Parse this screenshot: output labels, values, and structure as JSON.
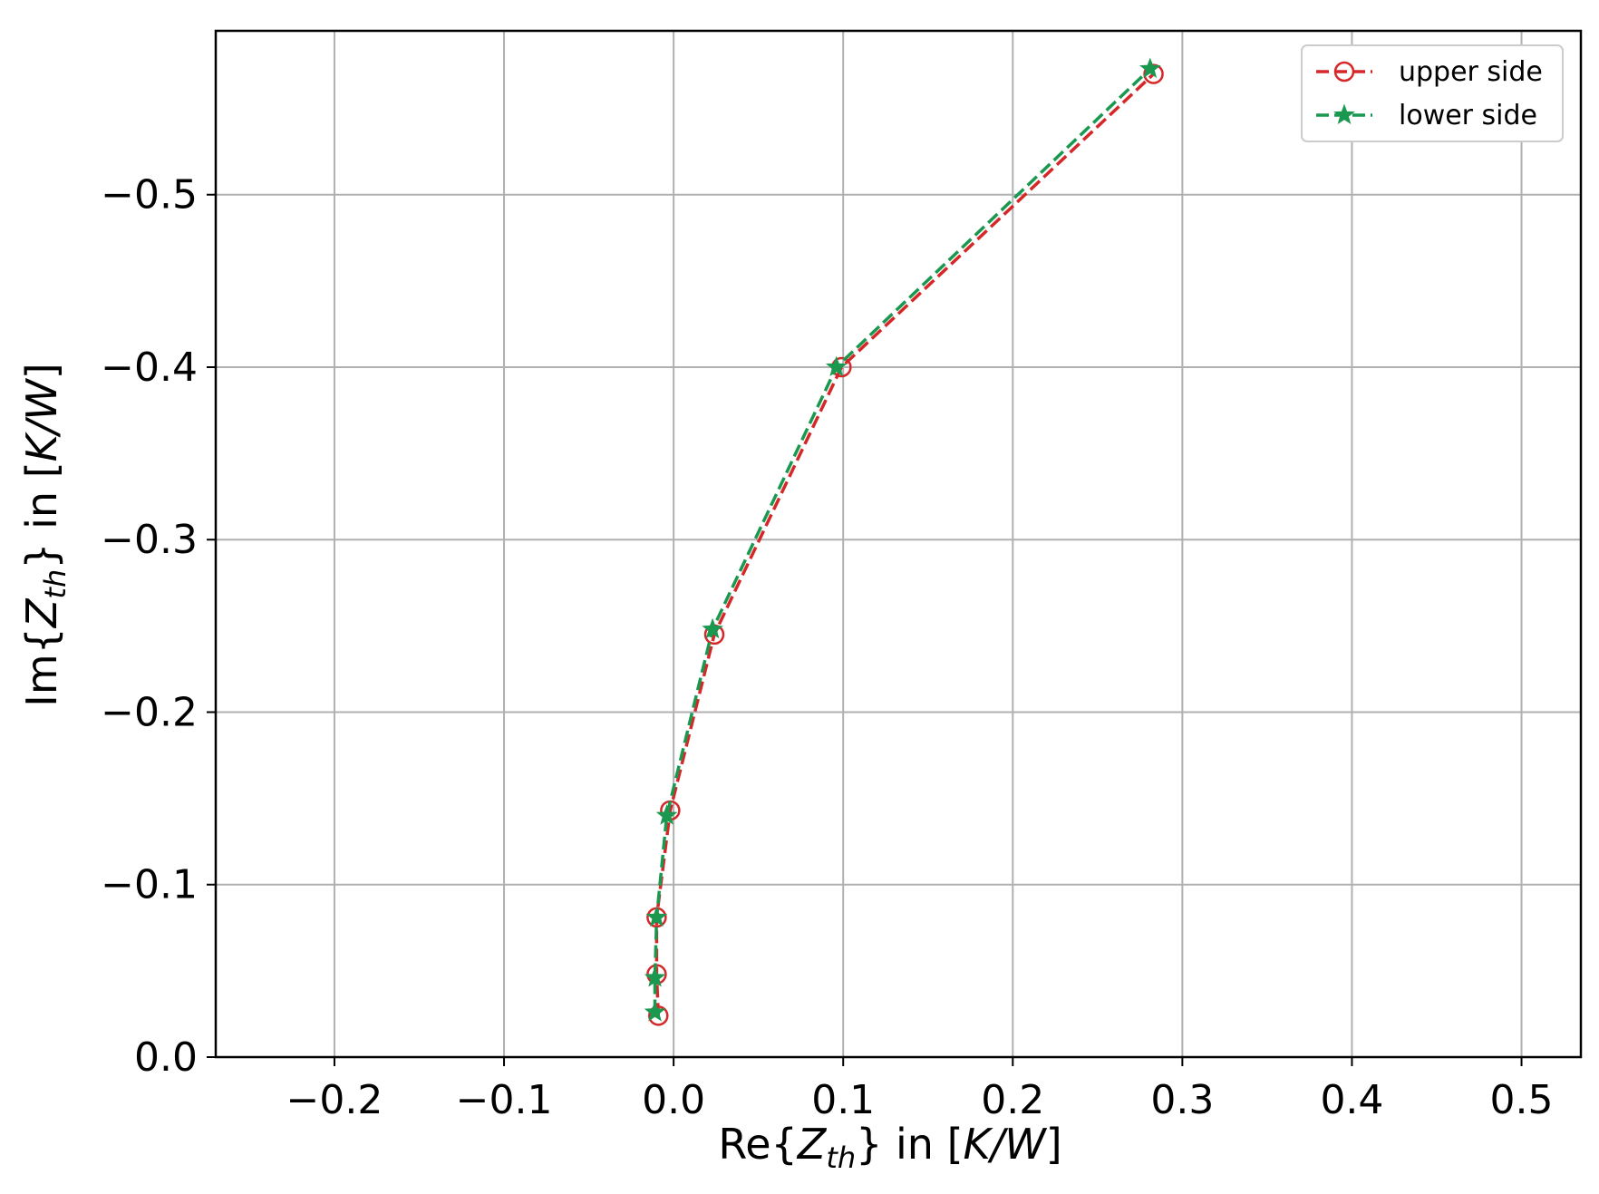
{
  "chart_data": {
    "type": "line",
    "xlabel": {
      "prefix": "Re{",
      "var": "Z",
      "sub": "th",
      "suffix": "} in [",
      "unit": "K/W",
      "end": "]"
    },
    "ylabel": {
      "prefix": "Im{",
      "var": "Z",
      "sub": "th",
      "suffix": "} in [",
      "unit": "K/W",
      "end": "]"
    },
    "xlim": [
      -0.27,
      0.535
    ],
    "ylim": [
      0.0,
      -0.595
    ],
    "y_inverted": true,
    "xticks": [
      -0.2,
      -0.1,
      0.0,
      0.1,
      0.2,
      0.3,
      0.4,
      0.5
    ],
    "xtick_labels": [
      "−0.2",
      "−0.1",
      "0.0",
      "0.1",
      "0.2",
      "0.3",
      "0.4",
      "0.5"
    ],
    "yticks": [
      0.0,
      -0.1,
      -0.2,
      -0.3,
      -0.4,
      -0.5
    ],
    "ytick_labels": [
      "0.0",
      "−0.1",
      "−0.2",
      "−0.3",
      "−0.4",
      "−0.5"
    ],
    "grid": true,
    "legend_position": "top-right",
    "series": [
      {
        "name": "upper side",
        "color": "#d62728",
        "marker": "circle-open",
        "linestyle": "dashed",
        "x": [
          -0.009,
          -0.01,
          -0.01,
          -0.002,
          0.024,
          0.099,
          0.283
        ],
        "y": [
          -0.024,
          -0.048,
          -0.081,
          -0.143,
          -0.245,
          -0.4,
          -0.57
        ]
      },
      {
        "name": "lower side",
        "color": "#1a9850",
        "marker": "star",
        "linestyle": "dashed",
        "x": [
          -0.011,
          -0.011,
          -0.01,
          -0.004,
          0.023,
          0.096,
          0.281
        ],
        "y": [
          -0.026,
          -0.046,
          -0.081,
          -0.14,
          -0.248,
          -0.4,
          -0.573
        ]
      }
    ]
  }
}
